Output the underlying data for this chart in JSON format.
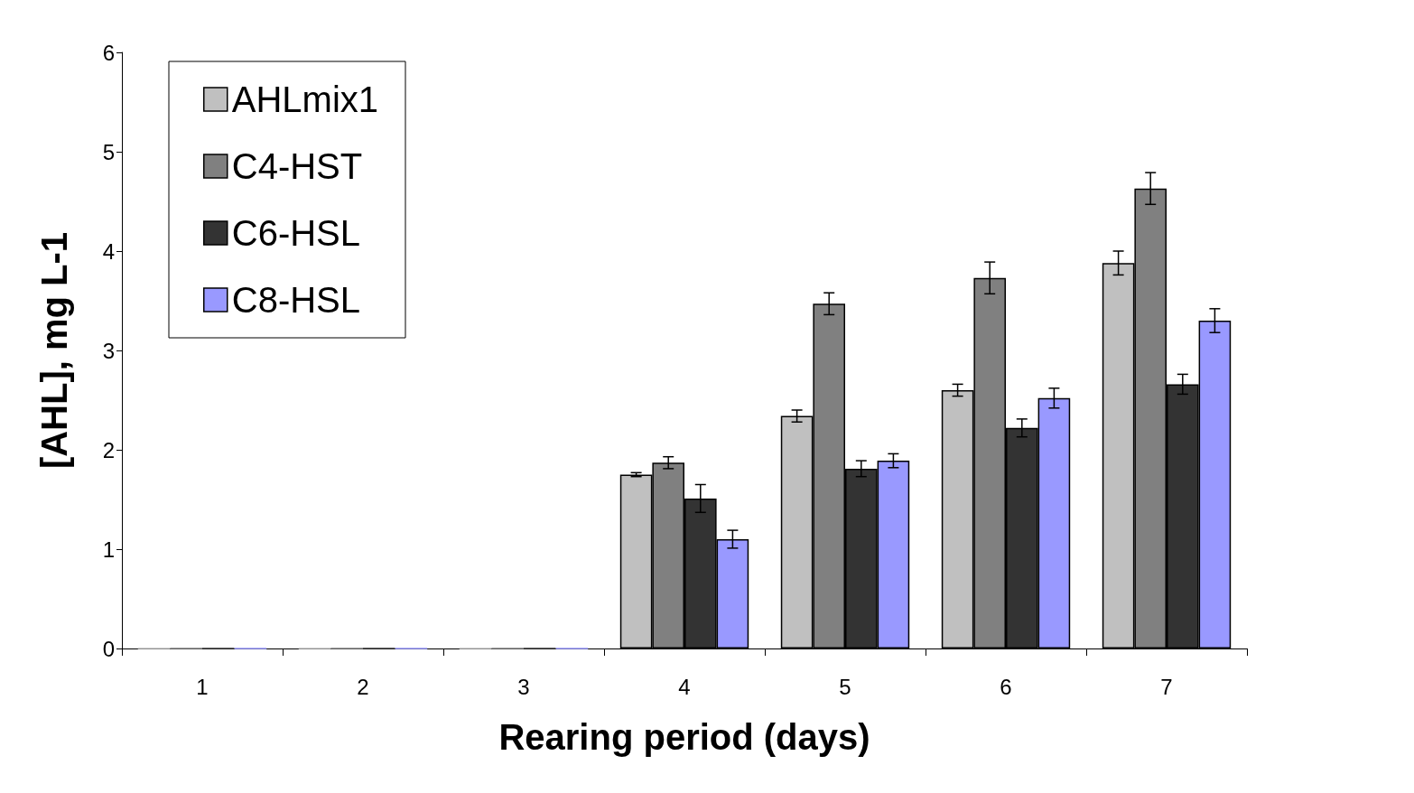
{
  "chart_data": {
    "type": "bar",
    "xlabel": "Rearing period (days)",
    "ylabel": "[AHL], mg L-1",
    "categories": [
      "1",
      "2",
      "3",
      "4",
      "5",
      "6",
      "7"
    ],
    "series": [
      {
        "name": "AHLmix1",
        "color": "#c0c0c0",
        "values": [
          0,
          0,
          0,
          1.75,
          2.34,
          2.6,
          3.88
        ],
        "errors": [
          null,
          null,
          null,
          0.02,
          0.06,
          0.06,
          0.12
        ]
      },
      {
        "name": "C4-HST",
        "color": "#808080",
        "values": [
          0,
          0,
          0,
          1.87,
          3.47,
          3.73,
          4.63
        ],
        "errors": [
          null,
          null,
          null,
          0.06,
          0.11,
          0.16,
          0.16
        ]
      },
      {
        "name": "C6-HSL",
        "color": "#333333",
        "values": [
          0,
          0,
          0,
          1.51,
          1.81,
          2.22,
          2.66
        ],
        "errors": [
          null,
          null,
          null,
          0.14,
          0.08,
          0.09,
          0.1
        ]
      },
      {
        "name": "C8-HSL",
        "color": "#9999ff",
        "values": [
          0,
          0,
          0,
          1.1,
          1.89,
          2.52,
          3.3
        ],
        "errors": [
          null,
          null,
          null,
          0.09,
          0.07,
          0.1,
          0.12
        ]
      }
    ],
    "ylim": [
      0,
      6
    ],
    "yticks": [
      0,
      1,
      2,
      3,
      4,
      5,
      6
    ],
    "grid": false,
    "legend": "top left"
  }
}
